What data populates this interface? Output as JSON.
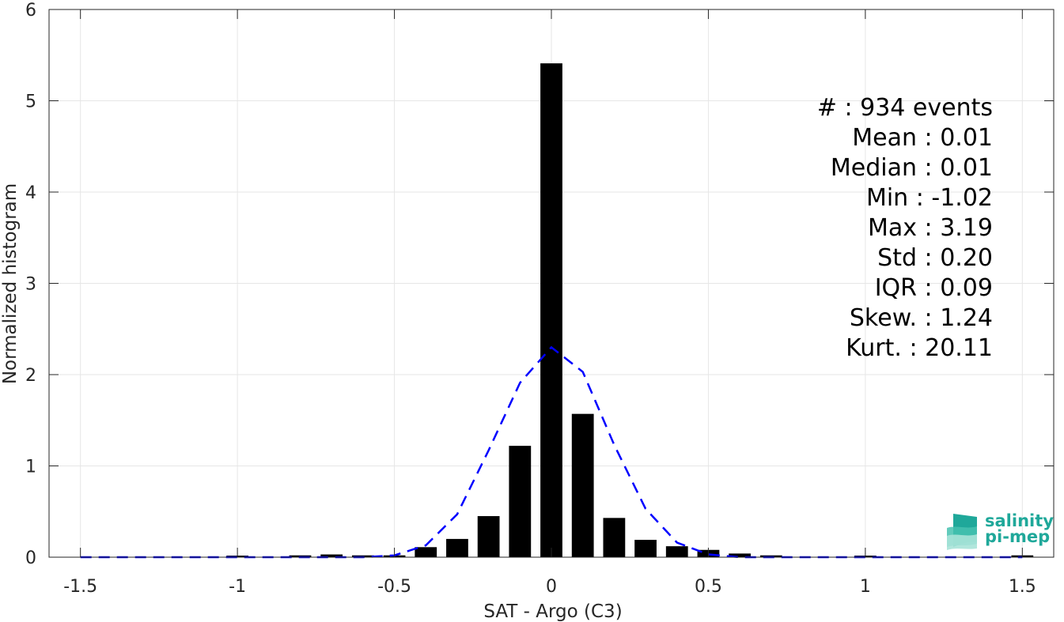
{
  "chart_data": {
    "type": "bar",
    "xlabel": "SAT - Argo (C3)",
    "ylabel": "Normalized histogram",
    "xlim": [
      -1.6,
      1.6
    ],
    "ylim": [
      0,
      6
    ],
    "grid": true,
    "x_ticks": [
      -1.5,
      -1,
      -0.5,
      0,
      0.5,
      1,
      1.5
    ],
    "x_tick_labels": [
      "-1.5",
      "-1",
      "-0.5",
      "0",
      "0.5",
      "1",
      "1.5"
    ],
    "y_ticks": [
      0,
      1,
      2,
      3,
      4,
      5,
      6
    ],
    "y_tick_labels": [
      "0",
      "1",
      "2",
      "3",
      "4",
      "5",
      "6"
    ],
    "bar_color": "#000000",
    "bars": {
      "x": [
        -1.5,
        -1.4,
        -1.3,
        -1.2,
        -1.1,
        -1.0,
        -0.9,
        -0.8,
        -0.7,
        -0.6,
        -0.5,
        -0.4,
        -0.3,
        -0.2,
        -0.1,
        0.0,
        0.1,
        0.2,
        0.3,
        0.4,
        0.5,
        0.6,
        0.7,
        0.8,
        0.9,
        1.0,
        1.1,
        1.2,
        1.3,
        1.4,
        1.5
      ],
      "values": [
        0,
        0,
        0,
        0,
        0,
        0.01,
        0,
        0.02,
        0.03,
        0.02,
        0.02,
        0.11,
        0.2,
        0.45,
        1.22,
        5.41,
        1.57,
        0.43,
        0.19,
        0.12,
        0.08,
        0.04,
        0.02,
        0,
        0,
        0.01,
        0,
        0,
        0,
        0,
        0.02
      ]
    },
    "fit_line": {
      "style": "dashed",
      "color": "#0000ff",
      "x": [
        -1.5,
        -1.4,
        -1.3,
        -1.2,
        -1.1,
        -1.0,
        -0.9,
        -0.8,
        -0.7,
        -0.6,
        -0.5,
        -0.4,
        -0.3,
        -0.2,
        -0.1,
        0.0,
        0.1,
        0.2,
        0.3,
        0.4,
        0.5,
        0.6,
        0.7,
        0.8,
        0.9,
        1.0,
        1.1,
        1.2,
        1.3,
        1.4,
        1.5
      ],
      "y": [
        0,
        0,
        0,
        0,
        0,
        0,
        0,
        0,
        0,
        0,
        0.02,
        0.13,
        0.47,
        1.17,
        1.91,
        2.3,
        2.03,
        1.23,
        0.53,
        0.16,
        0.03,
        0,
        0,
        0,
        0,
        0,
        0,
        0,
        0,
        0,
        0
      ]
    }
  },
  "stats": [
    {
      "label": "#  ",
      "value": "934 events"
    },
    {
      "label": "Mean",
      "value": "0.01"
    },
    {
      "label": "Median",
      "value": "0.01"
    },
    {
      "label": "Min",
      "value": "-1.02"
    },
    {
      "label": "Max",
      "value": "3.19"
    },
    {
      "label": "Std",
      "value": "0.20"
    },
    {
      "label": "IQR",
      "value": "0.09"
    },
    {
      "label": "Skew.",
      "value": "1.24"
    },
    {
      "label": "Kurt.",
      "value": "20.11"
    }
  ],
  "stats_text": [
    "#  : 934 events",
    "Mean : 0.01",
    "Median : 0.01",
    "Min : -1.02",
    "Max : 3.19",
    "Std : 0.20",
    "IQR : 0.09",
    "Skew. : 1.24",
    "Kurt. : 20.11"
  ],
  "logo": {
    "line1": "salinity",
    "line2": "pi-mep",
    "color": "#1fa89a"
  }
}
